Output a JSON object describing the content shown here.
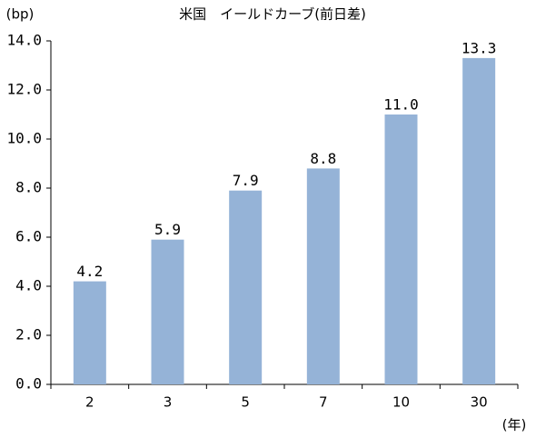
{
  "chart_data": {
    "type": "bar",
    "title": "米国　イールドカーブ(前日差)",
    "y_unit": "(bp)",
    "x_unit": "(年)",
    "categories": [
      "2",
      "3",
      "5",
      "7",
      "10",
      "30"
    ],
    "values": [
      4.2,
      5.9,
      7.9,
      8.8,
      11.0,
      13.3
    ],
    "value_labels": [
      "4.2",
      "5.9",
      "7.9",
      "8.8",
      "11.0",
      "13.3"
    ],
    "color": "#95b3d7",
    "ylim": [
      0,
      14
    ],
    "yticks": [
      {
        "value": 0,
        "label": "0.0"
      },
      {
        "value": 2,
        "label": "2.0"
      },
      {
        "value": 4,
        "label": "4.0"
      },
      {
        "value": 6,
        "label": "6.0"
      },
      {
        "value": 8,
        "label": "8.0"
      },
      {
        "value": 10,
        "label": "10.0"
      },
      {
        "value": 12,
        "label": "12.0"
      },
      {
        "value": 14,
        "label": "14.0"
      }
    ],
    "grid": false
  }
}
